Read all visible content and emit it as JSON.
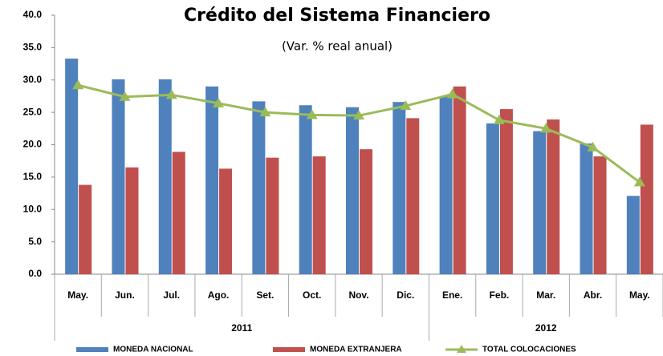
{
  "chart_data": {
    "type": "bar_line",
    "title": "Crédito del Sistema Financiero",
    "subtitle": "(Var. % real anual)",
    "categories": [
      "May.",
      "Jun.",
      "Jul.",
      "Ago.",
      "Set.",
      "Oct.",
      "Nov.",
      "Dic.",
      "Ene.",
      "Feb.",
      "Mar.",
      "Abr.",
      "May."
    ],
    "x_groups": [
      {
        "label": "2011",
        "span": 8
      },
      {
        "label": "2012",
        "span": 5
      }
    ],
    "series": [
      {
        "name": "MONEDA NACIONAL",
        "type": "bar",
        "color": "#4f81bd",
        "values": [
          33.3,
          30.1,
          30.1,
          29.0,
          26.7,
          26.1,
          25.8,
          26.6,
          27.5,
          23.3,
          22.1,
          20.2,
          12.1
        ]
      },
      {
        "name": "MONEDA EXTRANJERA",
        "type": "bar",
        "color": "#c0504d",
        "values": [
          13.8,
          16.5,
          18.9,
          16.3,
          18.0,
          18.2,
          19.3,
          24.1,
          29.0,
          25.5,
          23.9,
          18.2,
          23.1
        ]
      },
      {
        "name": "TOTAL COLOCACIONES",
        "type": "line",
        "color": "#9bbb59",
        "values": [
          29.2,
          27.4,
          27.7,
          26.4,
          25.0,
          24.6,
          24.5,
          26.0,
          27.8,
          23.8,
          22.5,
          19.6,
          14.2
        ]
      }
    ],
    "ylim": [
      0,
      40
    ],
    "yticks": [
      {
        "value": 0,
        "label": "0.0"
      },
      {
        "value": 5,
        "label": "5.0"
      },
      {
        "value": 10,
        "label": "10.0"
      },
      {
        "value": 15,
        "label": "15.0"
      },
      {
        "value": 20,
        "label": "20.0"
      },
      {
        "value": 25,
        "label": "25.0"
      },
      {
        "value": 30,
        "label": "30.0"
      },
      {
        "value": 35,
        "label": "35.0"
      },
      {
        "value": 40,
        "label": "40.0"
      }
    ],
    "legend": "bottom"
  }
}
